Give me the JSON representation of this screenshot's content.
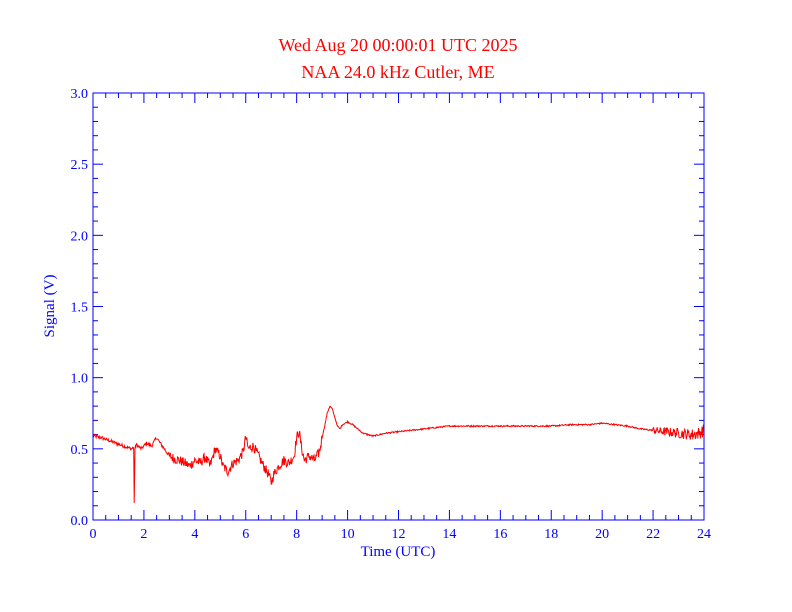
{
  "chart_data": {
    "type": "line",
    "title": "Wed Aug 20 00:00:01 UTC 2025",
    "subtitle": "NAA 24.0 kHz Cutler, ME",
    "xlabel": "Time (UTC)",
    "ylabel": "Signal (V)",
    "xlim": [
      0,
      24
    ],
    "ylim": [
      0,
      3.0
    ],
    "x_ticks": [
      "0",
      "2",
      "4",
      "6",
      "8",
      "10",
      "12",
      "14",
      "16",
      "18",
      "20",
      "22",
      "24"
    ],
    "y_ticks": [
      "0.0",
      "0.5",
      "1.0",
      "1.5",
      "2.0",
      "2.5",
      "3.0"
    ],
    "grid": false,
    "colors": {
      "axis": "#0000ff",
      "title": "#ff0000",
      "series": "#ff0000"
    },
    "series": [
      {
        "x": [
          0.0,
          0.3,
          0.6,
          0.9,
          1.2,
          1.5,
          1.6,
          1.62,
          1.65,
          1.7,
          1.9,
          2.1,
          2.3,
          2.5,
          2.6,
          2.8,
          3.0,
          3.2,
          3.4,
          3.6,
          3.8,
          4.0,
          4.2,
          4.4,
          4.6,
          4.8,
          5.0,
          5.1,
          5.3,
          5.5,
          5.7,
          5.9,
          6.0,
          6.1,
          6.3,
          6.5,
          6.7,
          6.9,
          7.0,
          7.1,
          7.3,
          7.5,
          7.7,
          7.9,
          8.0,
          8.1,
          8.2,
          8.3,
          8.5,
          8.7,
          8.9,
          9.0,
          9.1,
          9.2,
          9.3,
          9.4,
          9.5,
          9.6,
          9.7,
          9.8,
          10.0,
          10.2,
          10.4,
          10.6,
          10.8,
          11.0,
          11.5,
          12.0,
          12.5,
          13.0,
          13.5,
          14.0,
          15.0,
          16.0,
          17.0,
          18.0,
          18.8,
          19.0,
          19.5,
          20.0,
          20.5,
          21.0,
          21.5,
          22.0,
          22.5,
          23.0,
          23.5,
          23.8,
          24.0
        ],
        "values": [
          0.59,
          0.58,
          0.56,
          0.54,
          0.52,
          0.5,
          0.51,
          0.12,
          0.5,
          0.53,
          0.5,
          0.54,
          0.52,
          0.58,
          0.55,
          0.5,
          0.45,
          0.43,
          0.42,
          0.4,
          0.38,
          0.42,
          0.4,
          0.44,
          0.38,
          0.5,
          0.45,
          0.38,
          0.34,
          0.4,
          0.42,
          0.48,
          0.58,
          0.5,
          0.52,
          0.45,
          0.38,
          0.32,
          0.26,
          0.32,
          0.38,
          0.42,
          0.4,
          0.45,
          0.58,
          0.62,
          0.5,
          0.42,
          0.45,
          0.42,
          0.48,
          0.58,
          0.66,
          0.75,
          0.8,
          0.78,
          0.72,
          0.66,
          0.64,
          0.67,
          0.69,
          0.67,
          0.64,
          0.61,
          0.6,
          0.59,
          0.61,
          0.62,
          0.63,
          0.64,
          0.65,
          0.66,
          0.66,
          0.66,
          0.66,
          0.66,
          0.67,
          0.67,
          0.67,
          0.68,
          0.67,
          0.66,
          0.64,
          0.63,
          0.62,
          0.61,
          0.6,
          0.61,
          0.63
        ]
      }
    ]
  }
}
